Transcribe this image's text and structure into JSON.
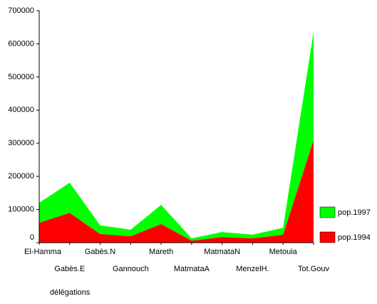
{
  "chart_data": {
    "type": "area",
    "stacked": true,
    "categories": [
      "El-Hamma",
      "Gabès.E",
      "Gabès.N",
      "Gannouch",
      "Mareth",
      "MatmataA",
      "MatmataN",
      "MenzelH.",
      "Metouia",
      "Tot.Gouv"
    ],
    "series": [
      {
        "name": "pop.1994",
        "color": "#ff0000",
        "values": [
          60000,
          90000,
          26000,
          19000,
          56000,
          6000,
          17000,
          13000,
          24000,
          310000
        ]
      },
      {
        "name": "pop.1997",
        "color": "#00ff00",
        "values": [
          60000,
          91000,
          26000,
          20000,
          58000,
          7000,
          15000,
          11000,
          21000,
          326000
        ]
      }
    ],
    "xlabel": "délégations",
    "ylim": [
      0,
      700000
    ],
    "yticks": [
      0,
      100000,
      200000,
      300000,
      400000,
      500000,
      600000,
      700000
    ],
    "legend": "right"
  }
}
